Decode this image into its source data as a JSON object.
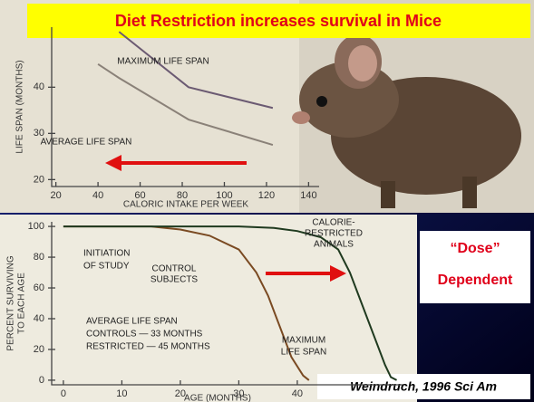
{
  "title": "Diet Restriction increases survival in Mice",
  "chart_data": [
    {
      "type": "line",
      "xlabel": "CALORIC INTAKE PER WEEK",
      "ylabel": "LIFE SPAN (MONTHS)",
      "xlim": [
        18,
        145
      ],
      "ylim": [
        18.5,
        53
      ],
      "xticks": [
        20,
        40,
        60,
        80,
        100,
        120,
        140
      ],
      "yticks": [
        20,
        30,
        40
      ],
      "series": [
        {
          "name": "MAXIMUM LIFE SPAN",
          "color": "#6b5a72",
          "x": [
            50,
            83,
            123
          ],
          "values": [
            52,
            40,
            35.5
          ]
        },
        {
          "name": "AVERAGE LIFE SPAN",
          "color": "#8a8178",
          "x": [
            40,
            50,
            83,
            123
          ],
          "values": [
            45,
            42,
            33,
            27.5
          ]
        }
      ]
    },
    {
      "type": "line",
      "xlabel": "AGE (MONTHS)",
      "ylabel": [
        "PERCENT SURVIVING",
        "TO EACH AGE"
      ],
      "xlim": [
        -2,
        58
      ],
      "ylim": [
        -3,
        103
      ],
      "xticks": [
        0,
        10,
        20,
        30,
        40
      ],
      "yticks": [
        0,
        20,
        40,
        60,
        80,
        100
      ],
      "series": [
        {
          "name": [
            "CONTROL",
            "SUBJECTS"
          ],
          "color": "#7a4a22",
          "x": [
            0,
            15,
            20,
            25,
            30,
            33,
            35,
            37,
            39,
            41,
            42
          ],
          "values": [
            100,
            100,
            98,
            94,
            85,
            70,
            55,
            35,
            15,
            3,
            0
          ]
        },
        {
          "name": [
            "CALORIE-",
            "RESTRICTED",
            "ANIMALS"
          ],
          "color": "#1f3a1f",
          "x": [
            0,
            30,
            36,
            40,
            44,
            47,
            49,
            51,
            53,
            55,
            56,
            57
          ],
          "values": [
            100,
            100,
            99,
            97,
            93,
            85,
            70,
            50,
            30,
            10,
            2,
            0
          ]
        }
      ],
      "annotations": [
        [
          "INITIATION",
          "OF STUDY"
        ],
        [
          "MAXIMUM",
          "LIFE SPAN"
        ],
        [
          "AVERAGE LIFE SPAN",
          "CONTROLS — 33 MONTHS",
          "RESTRICTED — 45 MONTHS"
        ]
      ]
    }
  ],
  "callout": [
    "“Dose”",
    "Dependent"
  ],
  "citation": "Weindruch, 1996 Sci Am"
}
